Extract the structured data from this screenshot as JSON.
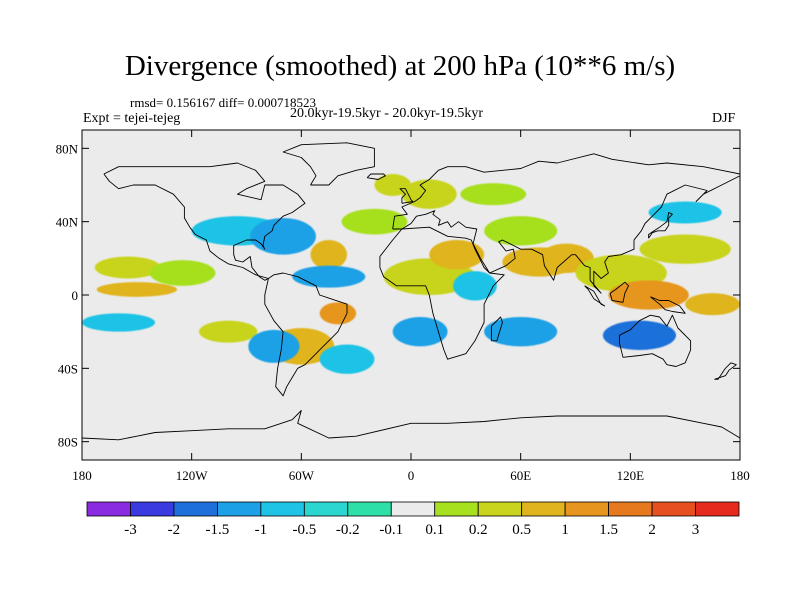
{
  "title": "Divergence (smoothed) at 200 hPa (10**6 m/s)",
  "stats_line": "rmsd= 0.156167  diff= 0.000718523",
  "experiment": "Expt = tejei-tejeg",
  "period": "20.0kyr-19.5kyr - 20.0kyr-19.5kyr",
  "season": "DJF",
  "map": {
    "background_color": "#ebebeb",
    "lon_range": [
      -180,
      180
    ],
    "lat_range": [
      -90,
      90
    ],
    "x_ticks": [
      {
        "lon": -180,
        "label": "180"
      },
      {
        "lon": -120,
        "label": "120W"
      },
      {
        "lon": -60,
        "label": "60W"
      },
      {
        "lon": 0,
        "label": "0"
      },
      {
        "lon": 60,
        "label": "60E"
      },
      {
        "lon": 120,
        "label": "120E"
      },
      {
        "lon": 180,
        "label": "180"
      }
    ],
    "y_ticks": [
      {
        "lat": 80,
        "label": "80N"
      },
      {
        "lat": 40,
        "label": "40N"
      },
      {
        "lat": 0,
        "label": "0"
      },
      {
        "lat": -40,
        "label": "40S"
      },
      {
        "lat": -80,
        "label": "80S"
      }
    ]
  },
  "colorbar": {
    "colors": [
      "#8a2be2",
      "#3a3ae0",
      "#1e6fd9",
      "#1ea0e6",
      "#1ec3e6",
      "#2bd6d1",
      "#2ee0a8",
      "#ebebeb",
      "#a6e01e",
      "#c8d41e",
      "#e0b41e",
      "#e6961e",
      "#e6781e",
      "#e6501e",
      "#e62a1e"
    ],
    "labels": [
      "-3",
      "-2",
      "-1.5",
      "-1",
      "-0.5",
      "-0.2",
      "-0.1",
      "0.1",
      "0.2",
      "0.5",
      "1",
      "1.5",
      "2",
      "3"
    ]
  },
  "blobs": [
    {
      "lon": -155,
      "lat": 15,
      "rx": 18,
      "ry": 6,
      "level": 9
    },
    {
      "lon": -150,
      "lat": 3,
      "rx": 22,
      "ry": 4,
      "level": 10
    },
    {
      "lon": -160,
      "lat": -15,
      "rx": 20,
      "ry": 5,
      "level": 4
    },
    {
      "lon": -125,
      "lat": 12,
      "rx": 18,
      "ry": 7,
      "level": 8
    },
    {
      "lon": -100,
      "lat": -20,
      "rx": 16,
      "ry": 6,
      "level": 9
    },
    {
      "lon": -95,
      "lat": 35,
      "rx": 25,
      "ry": 8,
      "level": 4
    },
    {
      "lon": -70,
      "lat": 32,
      "rx": 18,
      "ry": 10,
      "level": 3
    },
    {
      "lon": -45,
      "lat": 22,
      "rx": 10,
      "ry": 8,
      "level": 10
    },
    {
      "lon": -45,
      "lat": 10,
      "rx": 20,
      "ry": 6,
      "level": 3
    },
    {
      "lon": -20,
      "lat": 40,
      "rx": 18,
      "ry": 7,
      "level": 8
    },
    {
      "lon": -40,
      "lat": -10,
      "rx": 10,
      "ry": 6,
      "level": 11
    },
    {
      "lon": -60,
      "lat": -28,
      "rx": 18,
      "ry": 10,
      "level": 10
    },
    {
      "lon": -75,
      "lat": -28,
      "rx": 14,
      "ry": 9,
      "level": 3
    },
    {
      "lon": -35,
      "lat": -35,
      "rx": 15,
      "ry": 8,
      "level": 4
    },
    {
      "lon": 10,
      "lat": 10,
      "rx": 25,
      "ry": 10,
      "level": 9
    },
    {
      "lon": 25,
      "lat": 22,
      "rx": 15,
      "ry": 8,
      "level": 10
    },
    {
      "lon": 35,
      "lat": 5,
      "rx": 12,
      "ry": 8,
      "level": 4
    },
    {
      "lon": 10,
      "lat": 55,
      "rx": 15,
      "ry": 8,
      "level": 9
    },
    {
      "lon": 70,
      "lat": 18,
      "rx": 20,
      "ry": 8,
      "level": 10
    },
    {
      "lon": 85,
      "lat": 20,
      "rx": 15,
      "ry": 8,
      "level": 10
    },
    {
      "lon": 60,
      "lat": 35,
      "rx": 20,
      "ry": 8,
      "level": 8
    },
    {
      "lon": 115,
      "lat": 12,
      "rx": 25,
      "ry": 10,
      "level": 9
    },
    {
      "lon": 130,
      "lat": 0,
      "rx": 22,
      "ry": 8,
      "level": 11
    },
    {
      "lon": 150,
      "lat": 25,
      "rx": 25,
      "ry": 8,
      "level": 9
    },
    {
      "lon": 165,
      "lat": -5,
      "rx": 15,
      "ry": 6,
      "level": 10
    },
    {
      "lon": 60,
      "lat": -20,
      "rx": 20,
      "ry": 8,
      "level": 3
    },
    {
      "lon": 125,
      "lat": -22,
      "rx": 20,
      "ry": 8,
      "level": 2
    },
    {
      "lon": 150,
      "lat": 45,
      "rx": 20,
      "ry": 6,
      "level": 4
    },
    {
      "lon": -10,
      "lat": 60,
      "rx": 10,
      "ry": 6,
      "level": 9
    },
    {
      "lon": 45,
      "lat": 55,
      "rx": 18,
      "ry": 6,
      "level": 8
    },
    {
      "lon": 5,
      "lat": -20,
      "rx": 15,
      "ry": 8,
      "level": 3
    }
  ],
  "coastlines": [
    [
      [
        -168,
        66
      ],
      [
        -160,
        70
      ],
      [
        -140,
        70
      ],
      [
        -125,
        70
      ],
      [
        -110,
        70
      ],
      [
        -95,
        72
      ],
      [
        -85,
        68
      ],
      [
        -80,
        62
      ],
      [
        -90,
        58
      ],
      [
        -95,
        55
      ],
      [
        -82,
        52
      ],
      [
        -80,
        60
      ],
      [
        -70,
        60
      ],
      [
        -62,
        55
      ],
      [
        -58,
        50
      ],
      [
        -65,
        45
      ],
      [
        -70,
        43
      ],
      [
        -75,
        38
      ],
      [
        -76,
        35
      ],
      [
        -80,
        32
      ],
      [
        -81,
        27
      ],
      [
        -80,
        25
      ],
      [
        -82,
        28
      ],
      [
        -85,
        30
      ],
      [
        -90,
        30
      ],
      [
        -97,
        27
      ],
      [
        -97,
        22
      ],
      [
        -96,
        19
      ],
      [
        -92,
        18
      ],
      [
        -88,
        21
      ],
      [
        -87,
        15
      ],
      [
        -83,
        10
      ],
      [
        -80,
        8
      ],
      [
        -78,
        9
      ],
      [
        -85,
        11
      ],
      [
        -92,
        15
      ],
      [
        -100,
        17
      ],
      [
        -105,
        20
      ],
      [
        -110,
        24
      ],
      [
        -112,
        30
      ],
      [
        -118,
        33
      ],
      [
        -121,
        37
      ],
      [
        -124,
        42
      ],
      [
        -124,
        48
      ],
      [
        -130,
        55
      ],
      [
        -140,
        60
      ],
      [
        -152,
        60
      ],
      [
        -160,
        58
      ],
      [
        -165,
        62
      ],
      [
        -168,
        66
      ]
    ],
    [
      [
        -78,
        9
      ],
      [
        -75,
        11
      ],
      [
        -70,
        12
      ],
      [
        -62,
        10
      ],
      [
        -52,
        5
      ],
      [
        -50,
        0
      ],
      [
        -44,
        -2
      ],
      [
        -35,
        -5
      ],
      [
        -35,
        -10
      ],
      [
        -40,
        -20
      ],
      [
        -48,
        -28
      ],
      [
        -55,
        -35
      ],
      [
        -58,
        -38
      ],
      [
        -62,
        -40
      ],
      [
        -65,
        -45
      ],
      [
        -68,
        -50
      ],
      [
        -70,
        -55
      ],
      [
        -74,
        -50
      ],
      [
        -73,
        -40
      ],
      [
        -71,
        -30
      ],
      [
        -70,
        -20
      ],
      [
        -75,
        -14
      ],
      [
        -80,
        -5
      ],
      [
        -80,
        0
      ],
      [
        -78,
        9
      ]
    ],
    [
      [
        -17,
        15
      ],
      [
        -17,
        21
      ],
      [
        -10,
        30
      ],
      [
        -5,
        36
      ],
      [
        10,
        37
      ],
      [
        20,
        32
      ],
      [
        30,
        31
      ],
      [
        33,
        30
      ],
      [
        35,
        25
      ],
      [
        40,
        15
      ],
      [
        43,
        12
      ],
      [
        51,
        11
      ],
      [
        45,
        5
      ],
      [
        40,
        -5
      ],
      [
        40,
        -15
      ],
      [
        35,
        -25
      ],
      [
        30,
        -32
      ],
      [
        20,
        -35
      ],
      [
        18,
        -30
      ],
      [
        15,
        -20
      ],
      [
        12,
        -10
      ],
      [
        10,
        0
      ],
      [
        8,
        5
      ],
      [
        0,
        5
      ],
      [
        -8,
        5
      ],
      [
        -15,
        10
      ],
      [
        -17,
        15
      ]
    ],
    [
      [
        -10,
        36
      ],
      [
        -9,
        43
      ],
      [
        -2,
        44
      ],
      [
        -5,
        48
      ],
      [
        2,
        51
      ],
      [
        5,
        53
      ],
      [
        8,
        57
      ],
      [
        5,
        60
      ],
      [
        10,
        63
      ],
      [
        15,
        68
      ],
      [
        20,
        70
      ],
      [
        30,
        70
      ],
      [
        40,
        67
      ],
      [
        60,
        69
      ],
      [
        70,
        73
      ],
      [
        80,
        72
      ],
      [
        100,
        77
      ],
      [
        110,
        74
      ],
      [
        130,
        71
      ],
      [
        140,
        72
      ],
      [
        160,
        70
      ],
      [
        170,
        68
      ],
      [
        180,
        66
      ],
      [
        180,
        65
      ],
      [
        170,
        60
      ],
      [
        160,
        55
      ],
      [
        156,
        51
      ],
      [
        162,
        57
      ],
      [
        150,
        60
      ],
      [
        140,
        55
      ],
      [
        137,
        48
      ],
      [
        132,
        43
      ],
      [
        128,
        39
      ],
      [
        126,
        35
      ],
      [
        122,
        30
      ],
      [
        122,
        25
      ],
      [
        115,
        22
      ],
      [
        108,
        21
      ],
      [
        106,
        18
      ],
      [
        108,
        12
      ],
      [
        104,
        9
      ],
      [
        100,
        13
      ],
      [
        100,
        5
      ],
      [
        104,
        1
      ],
      [
        98,
        8
      ],
      [
        98,
        15
      ],
      [
        95,
        16
      ],
      [
        90,
        22
      ],
      [
        88,
        22
      ],
      [
        80,
        15
      ],
      [
        78,
        8
      ],
      [
        73,
        16
      ],
      [
        72,
        22
      ],
      [
        66,
        25
      ],
      [
        60,
        25
      ],
      [
        56,
        27
      ],
      [
        50,
        30
      ],
      [
        48,
        29
      ],
      [
        52,
        24
      ],
      [
        56,
        25
      ],
      [
        57,
        20
      ],
      [
        52,
        16
      ],
      [
        43,
        12
      ],
      [
        38,
        20
      ],
      [
        34,
        28
      ],
      [
        36,
        36
      ],
      [
        30,
        37
      ],
      [
        26,
        40
      ],
      [
        22,
        37
      ],
      [
        20,
        40
      ],
      [
        15,
        38
      ],
      [
        16,
        41
      ],
      [
        12,
        44
      ],
      [
        13,
        46
      ],
      [
        8,
        44
      ],
      [
        3,
        43
      ],
      [
        0,
        39
      ],
      [
        -5,
        36
      ],
      [
        -10,
        36
      ]
    ],
    [
      [
        114,
        -22
      ],
      [
        114,
        -26
      ],
      [
        116,
        -34
      ],
      [
        125,
        -33
      ],
      [
        132,
        -32
      ],
      [
        138,
        -35
      ],
      [
        140,
        -38
      ],
      [
        145,
        -39
      ],
      [
        150,
        -37
      ],
      [
        153,
        -30
      ],
      [
        153,
        -25
      ],
      [
        146,
        -18
      ],
      [
        143,
        -11
      ],
      [
        140,
        -17
      ],
      [
        136,
        -12
      ],
      [
        131,
        -11
      ],
      [
        125,
        -14
      ],
      [
        120,
        -19
      ],
      [
        114,
        -22
      ]
    ],
    [
      [
        -55,
        60
      ],
      [
        -45,
        60
      ],
      [
        -40,
        65
      ],
      [
        -30,
        68
      ],
      [
        -20,
        70
      ],
      [
        -20,
        80
      ],
      [
        -35,
        83
      ],
      [
        -60,
        82
      ],
      [
        -70,
        78
      ],
      [
        -60,
        75
      ],
      [
        -55,
        70
      ],
      [
        -52,
        65
      ],
      [
        -55,
        60
      ]
    ],
    [
      [
        -180,
        -78
      ],
      [
        -160,
        -79
      ],
      [
        -150,
        -77
      ],
      [
        -140,
        -75
      ],
      [
        -120,
        -74
      ],
      [
        -100,
        -73
      ],
      [
        -80,
        -73
      ],
      [
        -65,
        -68
      ],
      [
        -60,
        -63
      ],
      [
        -62,
        -70
      ],
      [
        -45,
        -78
      ],
      [
        -30,
        -77
      ],
      [
        0,
        -70
      ],
      [
        20,
        -70
      ],
      [
        40,
        -69
      ],
      [
        60,
        -67
      ],
      [
        80,
        -66
      ],
      [
        100,
        -66
      ],
      [
        120,
        -66
      ],
      [
        140,
        -66
      ],
      [
        160,
        -70
      ],
      [
        170,
        -72
      ],
      [
        180,
        -78
      ]
    ],
    [
      [
        95,
        5
      ],
      [
        100,
        2
      ],
      [
        104,
        -5
      ],
      [
        106,
        -6
      ],
      [
        100,
        -2
      ],
      [
        97,
        3
      ],
      [
        95,
        5
      ]
    ],
    [
      [
        109,
        1
      ],
      [
        112,
        3
      ],
      [
        117,
        7
      ],
      [
        119,
        5
      ],
      [
        117,
        1
      ],
      [
        116,
        -4
      ],
      [
        110,
        -3
      ],
      [
        109,
        1
      ]
    ],
    [
      [
        131,
        -1
      ],
      [
        136,
        -3
      ],
      [
        141,
        -3
      ],
      [
        147,
        -6
      ],
      [
        150,
        -10
      ],
      [
        143,
        -9
      ],
      [
        139,
        -8
      ],
      [
        136,
        -5
      ],
      [
        131,
        -1
      ]
    ],
    [
      [
        130,
        31
      ],
      [
        132,
        34
      ],
      [
        135,
        35
      ],
      [
        139,
        35
      ],
      [
        141,
        38
      ],
      [
        141,
        42
      ],
      [
        143,
        44
      ],
      [
        141,
        45
      ],
      [
        140,
        40
      ],
      [
        136,
        37
      ],
      [
        133,
        35
      ],
      [
        130,
        33
      ],
      [
        130,
        31
      ]
    ],
    [
      [
        44,
        -25
      ],
      [
        47,
        -25
      ],
      [
        50,
        -15
      ],
      [
        49,
        -12
      ],
      [
        44,
        -17
      ],
      [
        44,
        -25
      ]
    ],
    [
      [
        -5,
        50
      ],
      [
        -5,
        53
      ],
      [
        -3,
        55
      ],
      [
        -6,
        58
      ],
      [
        -3,
        58
      ],
      [
        0,
        52
      ],
      [
        1,
        51
      ],
      [
        -5,
        50
      ]
    ],
    [
      [
        166,
        -46
      ],
      [
        172,
        -44
      ],
      [
        174,
        -41
      ],
      [
        178,
        -38
      ],
      [
        175,
        -37
      ],
      [
        172,
        -40
      ],
      [
        168,
        -46
      ],
      [
        166,
        -46
      ]
    ],
    [
      [
        -24,
        64
      ],
      [
        -22,
        66
      ],
      [
        -15,
        66
      ],
      [
        -14,
        65
      ],
      [
        -18,
        63
      ],
      [
        -24,
        64
      ]
    ]
  ]
}
